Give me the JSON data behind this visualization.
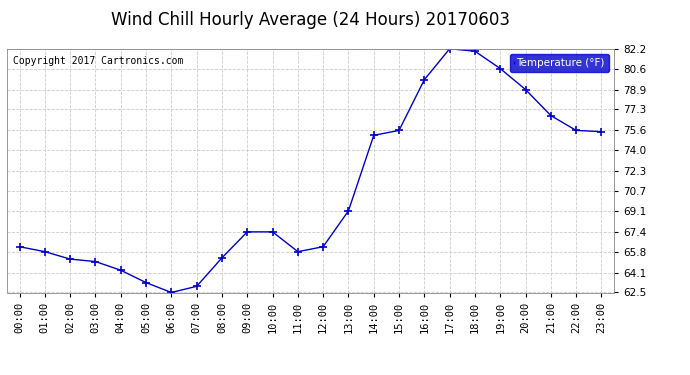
{
  "title": "Wind Chill Hourly Average (24 Hours) 20170603",
  "copyright_text": "Copyright 2017 Cartronics.com",
  "legend_label": "Temperature (°F)",
  "hours": [
    0,
    1,
    2,
    3,
    4,
    5,
    6,
    7,
    8,
    9,
    10,
    11,
    12,
    13,
    14,
    15,
    16,
    17,
    18,
    19,
    20,
    21,
    22,
    23
  ],
  "values": [
    66.2,
    65.8,
    65.2,
    65.0,
    64.3,
    63.3,
    62.5,
    63.0,
    65.3,
    67.4,
    67.4,
    65.8,
    66.2,
    69.1,
    75.2,
    75.6,
    79.7,
    82.2,
    82.0,
    80.6,
    78.9,
    76.8,
    75.6,
    75.5
  ],
  "line_color": "#0000cc",
  "marker": "+",
  "marker_size": 5,
  "xlim": [
    -0.5,
    23.5
  ],
  "ylim": [
    62.5,
    82.2
  ],
  "yticks": [
    62.5,
    64.1,
    65.8,
    67.4,
    69.1,
    70.7,
    72.3,
    74.0,
    75.6,
    77.3,
    78.9,
    80.6,
    82.2
  ],
  "background_color": "#ffffff",
  "plot_bg_color": "#ffffff",
  "grid_color": "#cccccc",
  "title_fontsize": 12,
  "copyright_fontsize": 7,
  "tick_fontsize": 7.5,
  "legend_bg_color": "#0000cc",
  "legend_text_color": "#ffffff"
}
